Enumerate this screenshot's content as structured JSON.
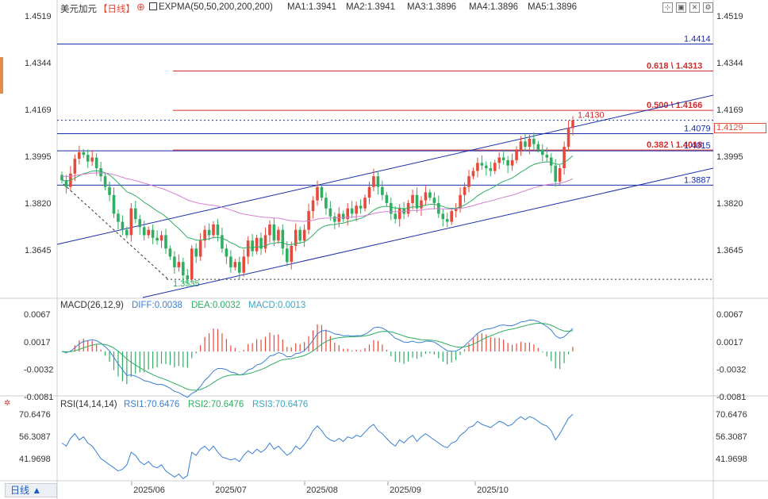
{
  "header": {
    "symbol": "美元加元",
    "period": "【日线】",
    "indicator": "EXPMA(50,50,200,200,200)",
    "ma": [
      {
        "label": "MA1:1.3941",
        "color": "#3a7fd5"
      },
      {
        "label": "MA2:1.3941",
        "color": "#2fae62"
      },
      {
        "label": "MA3:1.3896",
        "color": "#38a8c8"
      },
      {
        "label": "MA4:1.3896",
        "color": "#e6a33c"
      },
      {
        "label": "MA5:1.3896",
        "color": "#d77fd0"
      }
    ],
    "icons": [
      "expand-icon",
      "fullscreen-icon",
      "close-icon",
      "settings-icon"
    ]
  },
  "timeframe_button": "日线 ▲",
  "current_price_tag": "1.4129",
  "chart_data": [
    {
      "type": "candlestick",
      "name": "main",
      "y_ticks": [
        "1.4519",
        "1.4344",
        "1.4169",
        "1.3995",
        "1.3820",
        "1.3645"
      ],
      "ylim": [
        1.3455,
        1.4519
      ],
      "x_ticks": [
        "2025/06",
        "2025/07",
        "2025/08",
        "2025/09",
        "2025/10"
      ],
      "horizontal_levels": [
        {
          "label": "1.4414",
          "value": 1.4414,
          "color": "#1a2ea8"
        },
        {
          "label": "0.618 \\ 1.4313",
          "value": 1.4313,
          "color": "#d42b2b"
        },
        {
          "label": "0.500 \\ 1.4166",
          "value": 1.4166,
          "color": "#d42b2b"
        },
        {
          "label": "1.4079",
          "value": 1.4079,
          "color": "#1a2ea8"
        },
        {
          "label": "0.382 \\ 1.4018",
          "value": 1.4018,
          "color": "#d42b2b"
        },
        {
          "label": "1.4015",
          "value": 1.4015,
          "color": "#1a2ea8"
        },
        {
          "label": "1.3887",
          "value": 1.3887,
          "color": "#1a2ea8"
        }
      ],
      "annotations": [
        {
          "label": "1.4130",
          "value": 1.413,
          "color": "#d42b2b"
        },
        {
          "label": "1.3535",
          "value": 1.3535,
          "color": "#2fae62"
        }
      ],
      "close_series": [
        1.3905,
        1.388,
        1.393,
        1.3985,
        1.401,
        1.4,
        1.3975,
        1.399,
        1.395,
        1.392,
        1.388,
        1.385,
        1.378,
        1.375,
        1.372,
        1.37,
        1.38,
        1.376,
        1.373,
        1.37,
        1.372,
        1.369,
        1.368,
        1.37,
        1.365,
        1.362,
        1.358,
        1.36,
        1.355,
        1.3535,
        1.365,
        1.362,
        1.368,
        1.372,
        1.37,
        1.374,
        1.37,
        1.365,
        1.362,
        1.358,
        1.36,
        1.356,
        1.362,
        1.368,
        1.364,
        1.369,
        1.365,
        1.37,
        1.374,
        1.368,
        1.372,
        1.365,
        1.36,
        1.366,
        1.372,
        1.368,
        1.372,
        1.379,
        1.383,
        1.388,
        1.384,
        1.38,
        1.377,
        1.375,
        1.378,
        1.376,
        1.38,
        1.378,
        1.381,
        1.38,
        1.384,
        1.388,
        1.392,
        1.388,
        1.385,
        1.382,
        1.378,
        1.376,
        1.38,
        1.378,
        1.382,
        1.385,
        1.38,
        1.383,
        1.386,
        1.384,
        1.382,
        1.378,
        1.376,
        1.375,
        1.379,
        1.38,
        1.385,
        1.388,
        1.392,
        1.394,
        1.397,
        1.396,
        1.395,
        1.394,
        1.397,
        1.399,
        1.398,
        1.396,
        1.398,
        1.402,
        1.405,
        1.403,
        1.406,
        1.404,
        1.402,
        1.4,
        1.399,
        1.396,
        1.39,
        1.395,
        1.403,
        1.41,
        1.4129
      ],
      "rsi_series": [
        52,
        50,
        55,
        58,
        54,
        56,
        52,
        50,
        46,
        42,
        40,
        38,
        36,
        34,
        35,
        38,
        46,
        44,
        40,
        38,
        40,
        37,
        36,
        38,
        34,
        32,
        30,
        32,
        29,
        31,
        46,
        44,
        48,
        50,
        47,
        50,
        46,
        43,
        42,
        41,
        42,
        40,
        44,
        47,
        45,
        48,
        46,
        48,
        52,
        48,
        50,
        47,
        44,
        46,
        50,
        48,
        51,
        55,
        60,
        63,
        60,
        56,
        54,
        53,
        55,
        53,
        56,
        55,
        57,
        56,
        59,
        62,
        64,
        60,
        58,
        55,
        52,
        50,
        54,
        52,
        55,
        57,
        53,
        56,
        58,
        56,
        54,
        52,
        50,
        49,
        52,
        53,
        57,
        59,
        62,
        63,
        66,
        64,
        63,
        62,
        64,
        66,
        65,
        63,
        64,
        67,
        69,
        67,
        69,
        68,
        66,
        64,
        63,
        60,
        54,
        58,
        63,
        68,
        70.6
      ]
    },
    {
      "type": "macd",
      "name": "MACD(26,12,9)",
      "values": [
        {
          "label": "DIFF:0.0038",
          "color": "#3a7fd5"
        },
        {
          "label": "DEA:0.0032",
          "color": "#2fae62"
        },
        {
          "label": "MACD:0.0013",
          "color": "#38a8c8"
        }
      ],
      "y_ticks": [
        "0.0067",
        "0.0017",
        "-0.0032",
        "-0.0081"
      ]
    },
    {
      "type": "line",
      "name": "RSI(14,14,14)",
      "values": [
        {
          "label": "RSI1:70.6476",
          "color": "#3a7fd5"
        },
        {
          "label": "RSI2:70.6476",
          "color": "#2fae62"
        },
        {
          "label": "RSI3:70.6476",
          "color": "#38a8c8"
        }
      ],
      "y_ticks": [
        "70.6476",
        "56.3087",
        "41.9698"
      ]
    }
  ]
}
